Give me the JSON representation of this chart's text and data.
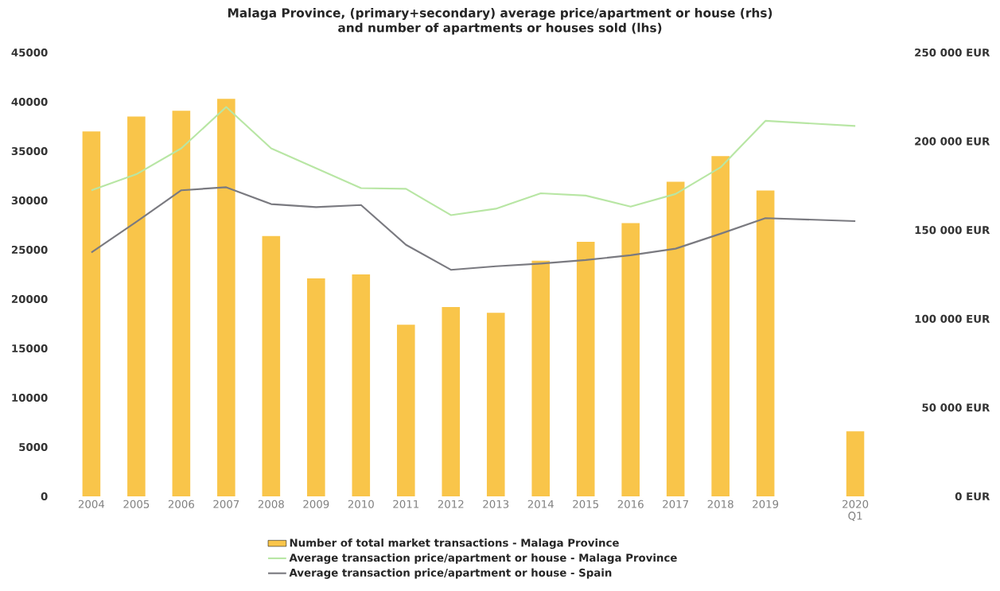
{
  "chart_data": {
    "type": "bar",
    "title": "Malaga Province,  (primary+secondary) average price/apartment or house (rhs)",
    "subtitle": "and number of apartments or houses sold (lhs)",
    "categories": [
      "2004",
      "2005",
      "2006",
      "2007",
      "2008",
      "2009",
      "2010",
      "2011",
      "2012",
      "2013",
      "2014",
      "2015",
      "2016",
      "2017",
      "2018",
      "2019",
      null,
      "2020 Q1"
    ],
    "series": [
      {
        "name": "Number of total  market transactions - Malaga Province",
        "color": "#f9c54a",
        "values": [
          37000,
          38500,
          39100,
          40300,
          26400,
          22100,
          22500,
          17400,
          19200,
          18600,
          23900,
          25800,
          27700,
          31900,
          34500,
          31000,
          null,
          6600
        ]
      },
      {
        "name": "Average transaction price/apartment or house - Malaga Province",
        "type": "line",
        "axis": "y2",
        "color": "#b8e6a4",
        "values": [
          172400,
          181400,
          196000,
          219300,
          196000,
          184800,
          173600,
          173200,
          158400,
          162000,
          170700,
          169400,
          163200,
          170300,
          185300,
          211500,
          null,
          208600
        ]
      },
      {
        "name": "Average transaction price/apartment or house - Spain",
        "type": "line",
        "axis": "y2",
        "color": "#7a7a80",
        "values": [
          137400,
          154600,
          172400,
          174100,
          164600,
          162900,
          164100,
          141700,
          127600,
          129600,
          131100,
          133100,
          135800,
          139500,
          147900,
          156700,
          null,
          155000
        ]
      }
    ],
    "ylim": [
      0,
      45000
    ],
    "yticks": [
      0,
      5000,
      10000,
      15000,
      20000,
      25000,
      30000,
      35000,
      40000,
      45000
    ],
    "y2lim": [
      0,
      250000
    ],
    "y2ticks": [
      {
        "value": 0,
        "label": "0 EUR"
      },
      {
        "value": 50000,
        "label": "50 000 EUR"
      },
      {
        "value": 100000,
        "label": "100 000 EUR"
      },
      {
        "value": 150000,
        "label": "150 000 EUR"
      },
      {
        "value": 200000,
        "label": "200 000 EUR"
      },
      {
        "value": 250000,
        "label": "250 000 EUR"
      }
    ],
    "grid": false,
    "legend": "bottom"
  }
}
